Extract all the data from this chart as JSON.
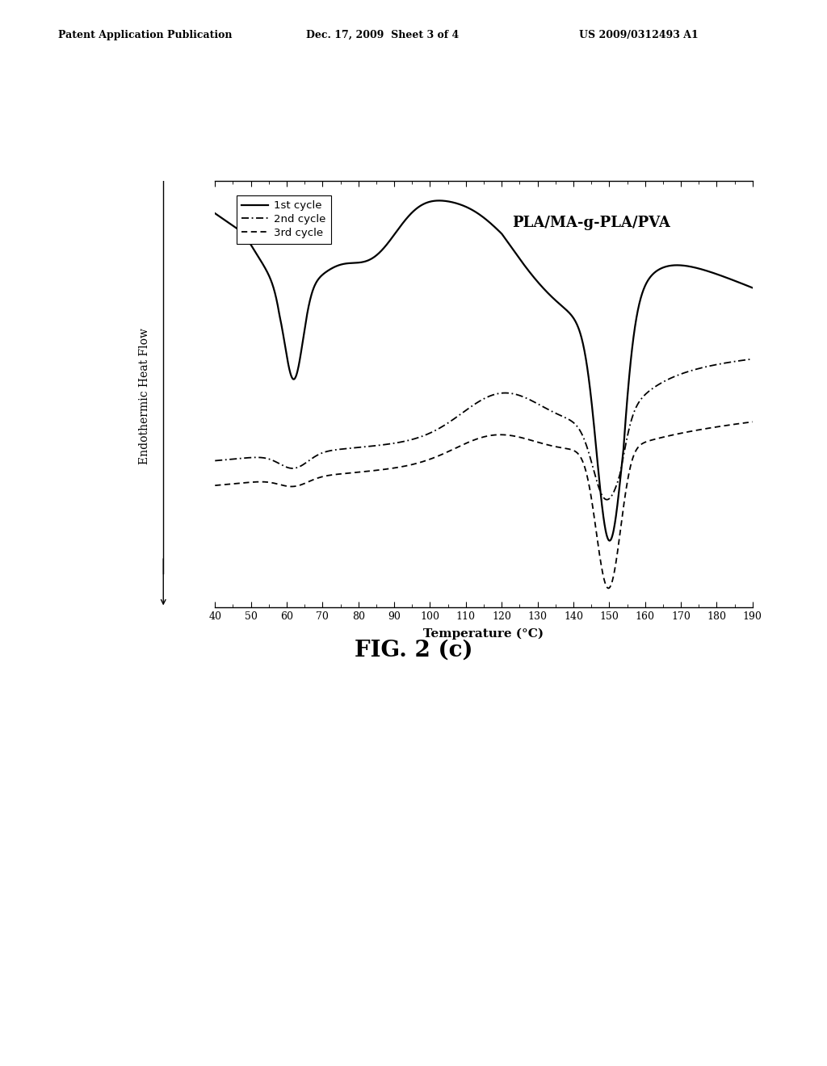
{
  "title_header_left": "Patent Application Publication",
  "title_header_mid": "Dec. 17, 2009  Sheet 3 of 4",
  "title_header_right": "US 2009/0312493 A1",
  "fig_label": "FIG. 2 (c)",
  "sample_label": "PLA/MA-g-PLA/PVA",
  "xlabel": "Temperature (°C)",
  "ylabel": "Endothermic Heat Flow",
  "xmin": 40,
  "xmax": 190,
  "xticks": [
    40,
    50,
    60,
    70,
    80,
    90,
    100,
    110,
    120,
    130,
    140,
    150,
    160,
    170,
    180,
    190
  ],
  "legend_entries": [
    "1st cycle",
    "2nd cycle",
    "3rd cycle"
  ],
  "background_color": "#ffffff",
  "line_color": "#000000",
  "header_fontsize": 9,
  "fig_label_fontsize": 20,
  "sample_label_fontsize": 13,
  "ylabel_fontsize": 10,
  "xlabel_fontsize": 11
}
